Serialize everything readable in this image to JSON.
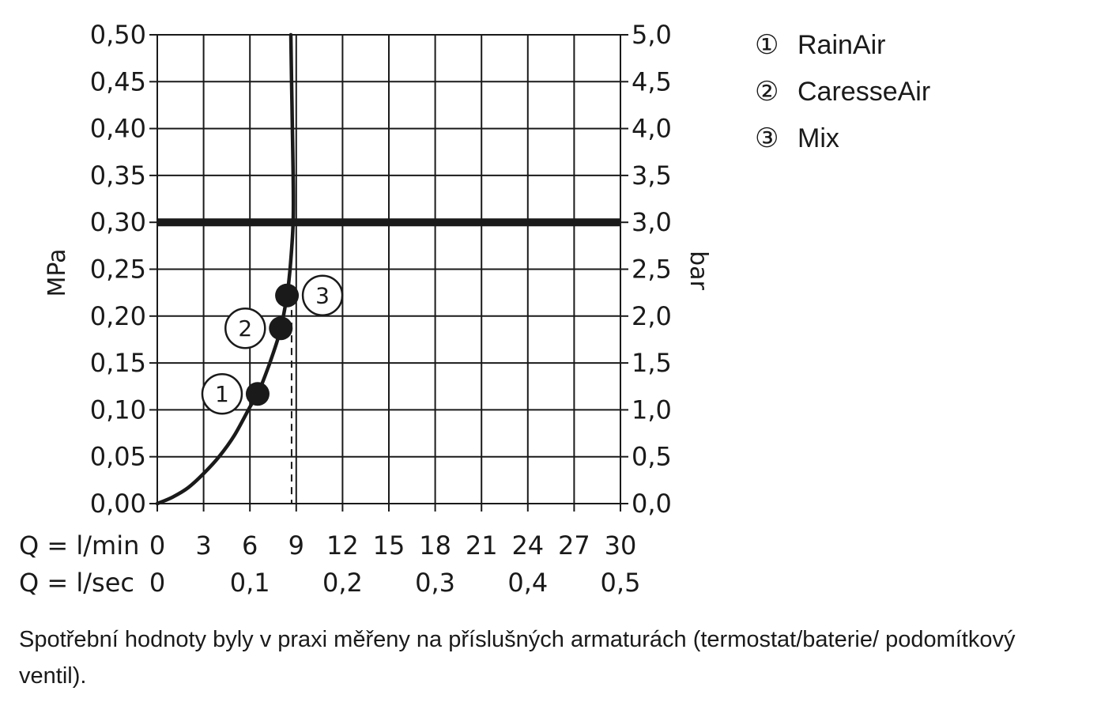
{
  "chart_data": {
    "type": "line",
    "title": "",
    "x_flow_lmin": {
      "label": "Q = l/min",
      "ticks": [
        "0",
        "3",
        "6",
        "9",
        "12",
        "15",
        "18",
        "21",
        "24",
        "27",
        "30"
      ],
      "range": [
        0,
        30
      ]
    },
    "x_flow_lsec": {
      "label": "Q = l/sec",
      "ticks": [
        "0",
        "0,1",
        "0,2",
        "0,3",
        "0,4",
        "0,5"
      ],
      "range": [
        0,
        0.5
      ]
    },
    "y_left": {
      "label": "MPa",
      "ticks": [
        "0,00",
        "0,05",
        "0,10",
        "0,15",
        "0,20",
        "0,25",
        "0,30",
        "0,35",
        "0,40",
        "0,45",
        "0,50"
      ],
      "range": [
        0,
        0.5
      ]
    },
    "y_right": {
      "label": "bar",
      "ticks": [
        "0,0",
        "0,5",
        "1,0",
        "1,5",
        "2,0",
        "2,5",
        "3,0",
        "3,5",
        "4,0",
        "4,5",
        "5,0"
      ],
      "range": [
        0,
        5
      ]
    },
    "grid": true,
    "reference_line": {
      "pressure_mpa": 0.3
    },
    "flow_reference_dashed": {
      "flow_lmin": 8.7,
      "pressure_mpa_top": 0.22
    },
    "series": [
      {
        "values": [
          {
            "x": 0,
            "y": 0.0
          },
          {
            "x": 1,
            "y": 0.007
          },
          {
            "x": 2,
            "y": 0.017
          },
          {
            "x": 3,
            "y": 0.032
          },
          {
            "x": 4,
            "y": 0.05
          },
          {
            "x": 5,
            "y": 0.073
          },
          {
            "x": 6,
            "y": 0.103
          },
          {
            "x": 6.5,
            "y": 0.117
          },
          {
            "x": 7,
            "y": 0.137
          },
          {
            "x": 7.5,
            "y": 0.16
          },
          {
            "x": 8,
            "y": 0.187
          },
          {
            "x": 8.4,
            "y": 0.222
          },
          {
            "x": 8.6,
            "y": 0.25
          },
          {
            "x": 8.8,
            "y": 0.3
          },
          {
            "x": 8.8,
            "y": 0.35
          },
          {
            "x": 8.75,
            "y": 0.4
          },
          {
            "x": 8.7,
            "y": 0.45
          },
          {
            "x": 8.65,
            "y": 0.5
          }
        ]
      }
    ],
    "markers": [
      {
        "label": "1",
        "x": 6.5,
        "y": 0.117
      },
      {
        "label": "2",
        "x": 8.0,
        "y": 0.187
      },
      {
        "label": "3",
        "x": 8.4,
        "y": 0.222
      }
    ],
    "legend": {
      "placement": "right",
      "items": [
        {
          "symbol": "①",
          "name": "RainAir"
        },
        {
          "symbol": "②",
          "name": "CaresseAir"
        },
        {
          "symbol": "③",
          "name": "Mix"
        }
      ]
    }
  },
  "footnote": "Spotřební hodnoty byly v praxi měřeny na příslušných armaturách (termostat/baterie/ podomítkový ventil)."
}
